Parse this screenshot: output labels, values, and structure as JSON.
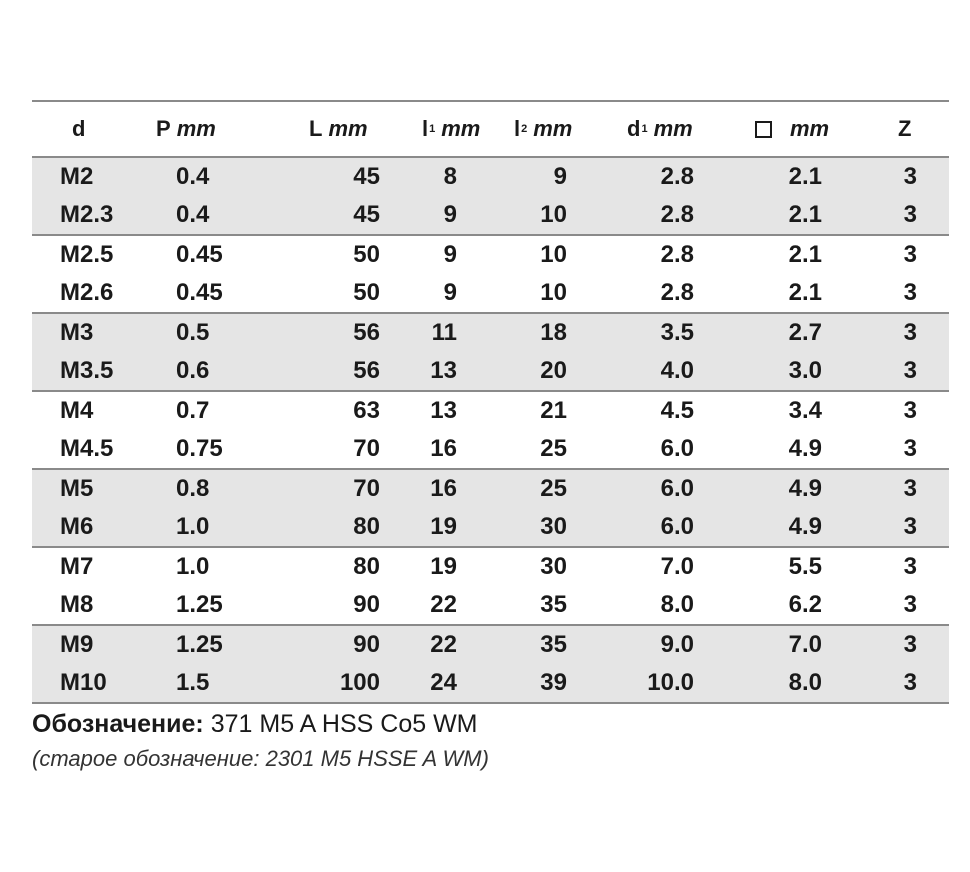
{
  "table": {
    "headers": {
      "d": "d",
      "p": {
        "sym": "P",
        "unit": "mm"
      },
      "L": {
        "sym": "L",
        "unit": "mm"
      },
      "l1": {
        "sym": "l",
        "sub": "1",
        "unit": "mm"
      },
      "l2": {
        "sym": "l",
        "sub": "2",
        "unit": "mm"
      },
      "d1": {
        "sym": "d",
        "sub": "1",
        "unit": "mm"
      },
      "sq": {
        "unit": "mm"
      },
      "z": "Z"
    },
    "groups": [
      {
        "rows": [
          [
            "M2",
            "0.4",
            "45",
            "8",
            "9",
            "2.8",
            "2.1",
            "3"
          ],
          [
            "M2.3",
            "0.4",
            "45",
            "9",
            "10",
            "2.8",
            "2.1",
            "3"
          ]
        ]
      },
      {
        "rows": [
          [
            "M2.5",
            "0.45",
            "50",
            "9",
            "10",
            "2.8",
            "2.1",
            "3"
          ],
          [
            "M2.6",
            "0.45",
            "50",
            "9",
            "10",
            "2.8",
            "2.1",
            "3"
          ]
        ]
      },
      {
        "rows": [
          [
            "M3",
            "0.5",
            "56",
            "11",
            "18",
            "3.5",
            "2.7",
            "3"
          ],
          [
            "M3.5",
            "0.6",
            "56",
            "13",
            "20",
            "4.0",
            "3.0",
            "3"
          ]
        ]
      },
      {
        "rows": [
          [
            "M4",
            "0.7",
            "63",
            "13",
            "21",
            "4.5",
            "3.4",
            "3"
          ],
          [
            "M4.5",
            "0.75",
            "70",
            "16",
            "25",
            "6.0",
            "4.9",
            "3"
          ]
        ]
      },
      {
        "rows": [
          [
            "M5",
            "0.8",
            "70",
            "16",
            "25",
            "6.0",
            "4.9",
            "3"
          ],
          [
            "M6",
            "1.0",
            "80",
            "19",
            "30",
            "6.0",
            "4.9",
            "3"
          ]
        ]
      },
      {
        "rows": [
          [
            "M7",
            "1.0",
            "80",
            "19",
            "30",
            "7.0",
            "5.5",
            "3"
          ],
          [
            "M8",
            "1.25",
            "90",
            "22",
            "35",
            "8.0",
            "6.2",
            "3"
          ]
        ]
      },
      {
        "rows": [
          [
            "M9",
            "1.25",
            "90",
            "22",
            "35",
            "9.0",
            "7.0",
            "3"
          ],
          [
            "M10",
            "1.5",
            "100",
            "24",
            "39",
            "10.0",
            "8.0",
            "3"
          ]
        ]
      }
    ]
  },
  "designation": {
    "label": "Обозначение:",
    "value": "371 M5 A HSS Co5 WM",
    "old": "(старое обозначение: 2301 M5 HSSE A WM)"
  }
}
